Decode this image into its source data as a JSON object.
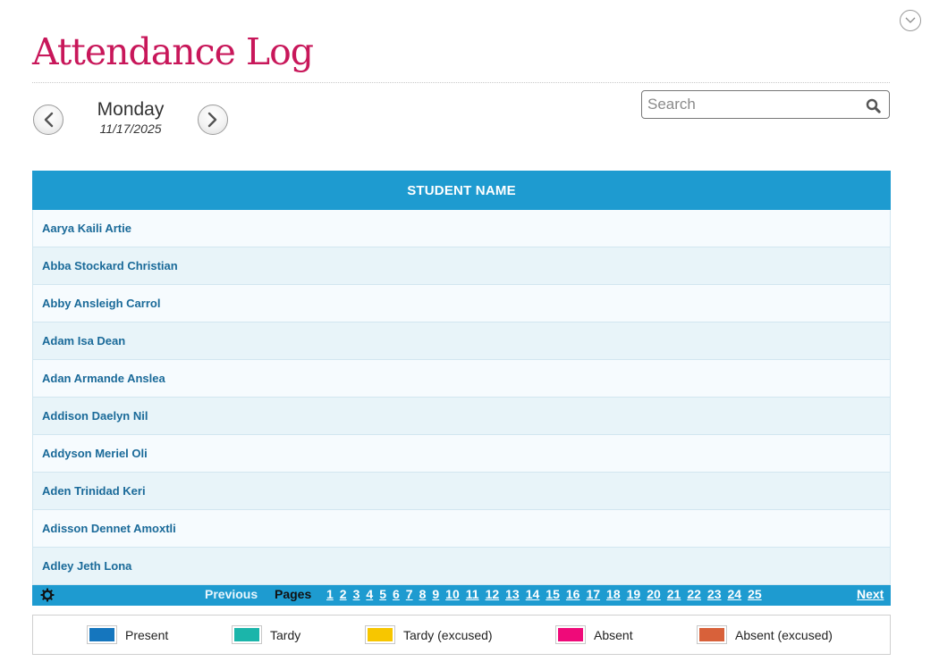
{
  "page": {
    "title": "Attendance Log"
  },
  "date_nav": {
    "day": "Monday",
    "date": "11/17/2025"
  },
  "search": {
    "placeholder": "Search",
    "value": ""
  },
  "table": {
    "header": "STUDENT NAME",
    "rows": [
      "Aarya Kaili Artie",
      "Abba Stockard Christian",
      "Abby Ansleigh Carrol",
      "Adam Isa Dean",
      "Adan Armande Anslea",
      "Addison Daelyn Nil",
      "Addyson Meriel Oli",
      "Aden Trinidad Keri",
      "Adisson Dennet Amoxtli",
      "Adley Jeth Lona"
    ]
  },
  "pagination": {
    "previous": "Previous",
    "pages_label": "Pages",
    "pages": [
      "1",
      "2",
      "3",
      "4",
      "5",
      "6",
      "7",
      "8",
      "9",
      "10",
      "11",
      "12",
      "13",
      "14",
      "15",
      "16",
      "17",
      "18",
      "19",
      "20",
      "21",
      "22",
      "23",
      "24",
      "25"
    ],
    "next": "Next"
  },
  "legend": [
    {
      "label": "Present",
      "color": "#1576be"
    },
    {
      "label": "Tardy",
      "color": "#1bb5aa"
    },
    {
      "label": "Tardy (excused)",
      "color": "#f7c600"
    },
    {
      "label": "Absent",
      "color": "#ef0a79"
    },
    {
      "label": "Absent (excused)",
      "color": "#d8613a"
    }
  ],
  "icons": {
    "collapse": "chevron-down-circle-icon",
    "prev": "chevron-left-icon",
    "next": "chevron-right-icon",
    "search": "magnifier-icon",
    "settings": "gear-icon"
  }
}
